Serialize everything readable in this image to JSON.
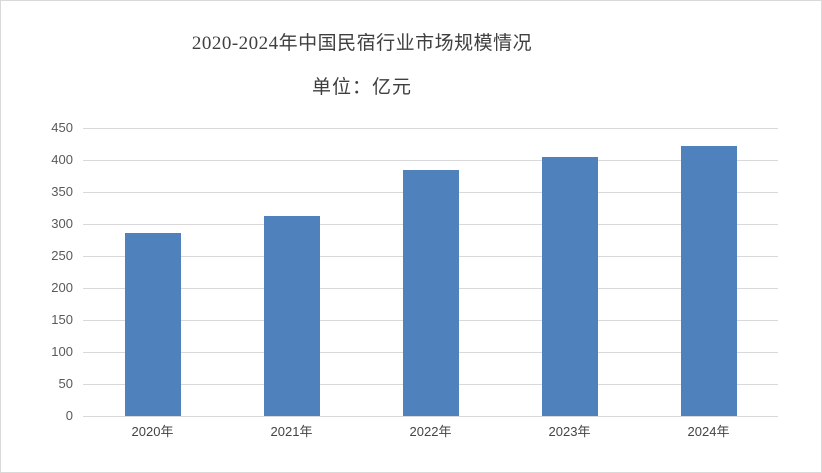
{
  "window": {
    "background_color": "#ffffff",
    "border_color": "#d9d9d9"
  },
  "chart_data": {
    "type": "bar",
    "title": "2020-2024年中国民宿行业市场规模情况",
    "subtitle": "单位：亿元",
    "unit": "亿元",
    "categories": [
      "2020年",
      "2021年",
      "2022年",
      "2023年",
      "2024年"
    ],
    "values": [
      286,
      312,
      385,
      405,
      422
    ],
    "ylim": [
      0,
      450
    ],
    "yticks": [
      0,
      50,
      100,
      150,
      200,
      250,
      300,
      350,
      400,
      450
    ],
    "grid": "horizontal",
    "legend": "none",
    "bar_color": "#4f81bd",
    "gridline_color": "#d9d9d9",
    "title_color": "#3f3f3f",
    "y_label_color": "#595959",
    "x_label_color": "#444444"
  }
}
